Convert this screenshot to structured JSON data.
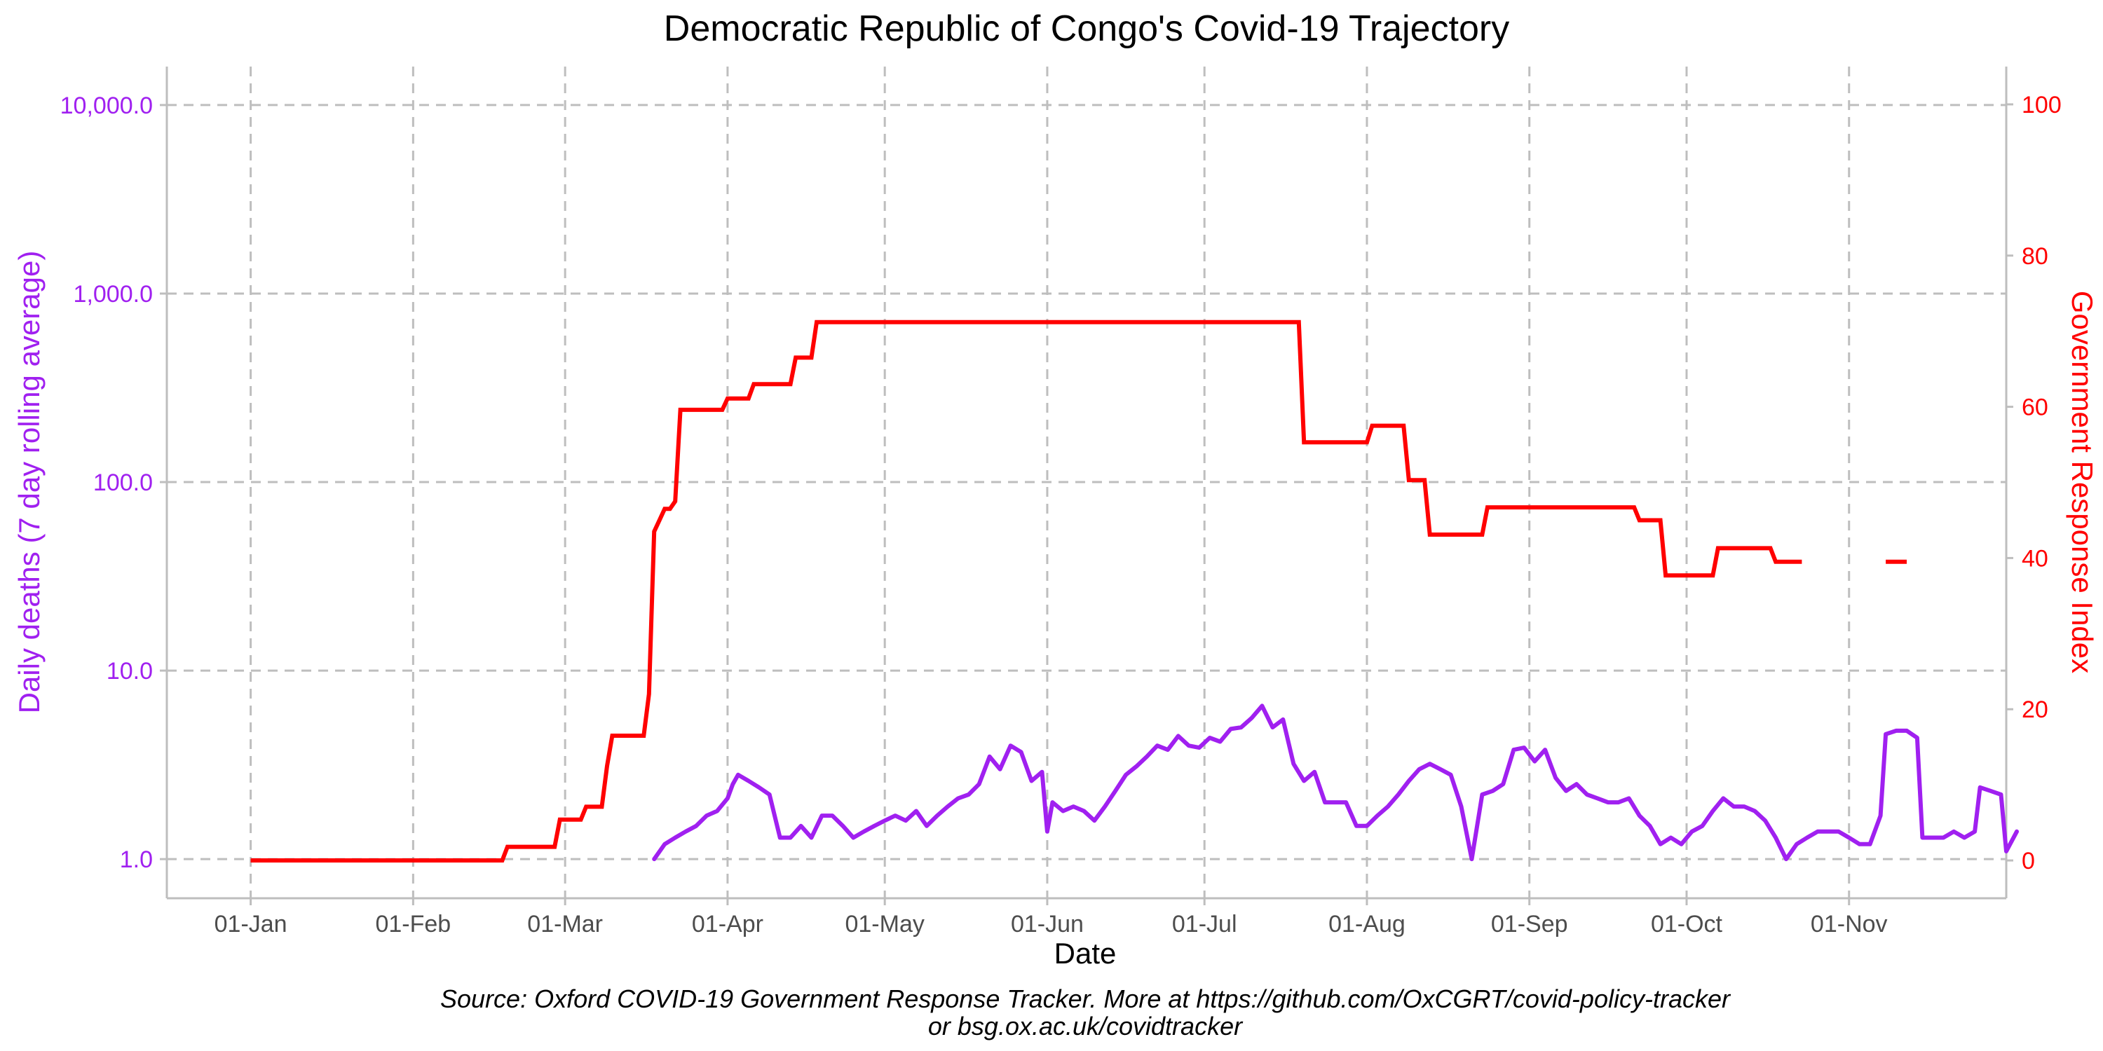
{
  "chart_data": {
    "type": "line",
    "title": "Democratic Republic of Congo's Covid-19 Trajectory",
    "xlabel": "Date",
    "ylabel_left": "Daily deaths (7 day rolling average)",
    "ylabel_right": "Government Response Index",
    "caption_line1": "Source: Oxford COVID-19 Government Response Tracker. More at https://github.com/OxCGRT/covid-policy-tracker",
    "caption_line2": "or bsg.ox.ac.uk/covidtracker",
    "x_ticks": [
      {
        "label": "01-Jan",
        "date": "2020-01-01"
      },
      {
        "label": "01-Feb",
        "date": "2020-02-01"
      },
      {
        "label": "01-Mar",
        "date": "2020-03-01"
      },
      {
        "label": "01-Apr",
        "date": "2020-04-01"
      },
      {
        "label": "01-May",
        "date": "2020-05-01"
      },
      {
        "label": "01-Jun",
        "date": "2020-06-01"
      },
      {
        "label": "01-Jul",
        "date": "2020-07-01"
      },
      {
        "label": "01-Aug",
        "date": "2020-08-01"
      },
      {
        "label": "01-Sep",
        "date": "2020-09-01"
      },
      {
        "label": "01-Oct",
        "date": "2020-10-01"
      },
      {
        "label": "01-Nov",
        "date": "2020-11-01"
      }
    ],
    "xlim": [
      "2019-12-16",
      "2020-12-01"
    ],
    "y_left": {
      "scale": "log10",
      "lim": [
        0.62,
        16000
      ],
      "ticks": [
        1,
        10,
        100,
        1000,
        10000
      ],
      "tick_labels": [
        "1.0",
        "10.0",
        "100.0",
        "1,000.0",
        "10,000.0"
      ]
    },
    "y_right": {
      "scale": "linear",
      "lim": [
        -5,
        105
      ],
      "ticks": [
        0,
        20,
        40,
        60,
        80,
        100
      ],
      "tick_labels": [
        "0",
        "20",
        "40",
        "60",
        "80",
        "100"
      ]
    },
    "grid": true,
    "colors": {
      "deaths": "#a020f0",
      "response": "#ff0000",
      "grid": "#bebebe",
      "axis": "#bebebe",
      "text": "#000000",
      "tick_text": "#4d4d4d"
    },
    "series": [
      {
        "name": "Daily deaths (7 day rolling average)",
        "axis": "left",
        "points": [
          [
            "2020-03-18",
            1.0
          ],
          [
            "2020-03-20",
            1.2
          ],
          [
            "2020-03-22",
            1.3
          ],
          [
            "2020-03-24",
            1.4
          ],
          [
            "2020-03-26",
            1.5
          ],
          [
            "2020-03-28",
            1.7
          ],
          [
            "2020-03-30",
            1.8
          ],
          [
            "2020-04-01",
            2.1
          ],
          [
            "2020-04-02",
            2.5
          ],
          [
            "2020-04-03",
            2.8
          ],
          [
            "2020-04-05",
            2.6
          ],
          [
            "2020-04-07",
            2.4
          ],
          [
            "2020-04-09",
            2.2
          ],
          [
            "2020-04-11",
            1.3
          ],
          [
            "2020-04-13",
            1.3
          ],
          [
            "2020-04-15",
            1.5
          ],
          [
            "2020-04-17",
            1.3
          ],
          [
            "2020-04-19",
            1.7
          ],
          [
            "2020-04-21",
            1.7
          ],
          [
            "2020-04-23",
            1.5
          ],
          [
            "2020-04-25",
            1.3
          ],
          [
            "2020-04-27",
            1.4
          ],
          [
            "2020-04-29",
            1.5
          ],
          [
            "2020-05-01",
            1.6
          ],
          [
            "2020-05-03",
            1.7
          ],
          [
            "2020-05-05",
            1.6
          ],
          [
            "2020-05-07",
            1.8
          ],
          [
            "2020-05-09",
            1.5
          ],
          [
            "2020-05-11",
            1.7
          ],
          [
            "2020-05-13",
            1.9
          ],
          [
            "2020-05-15",
            2.1
          ],
          [
            "2020-05-17",
            2.2
          ],
          [
            "2020-05-19",
            2.5
          ],
          [
            "2020-05-21",
            3.5
          ],
          [
            "2020-05-23",
            3.0
          ],
          [
            "2020-05-25",
            4.0
          ],
          [
            "2020-05-27",
            3.7
          ],
          [
            "2020-05-29",
            2.6
          ],
          [
            "2020-05-31",
            2.9
          ],
          [
            "2020-06-01",
            1.4
          ],
          [
            "2020-06-02",
            2.0
          ],
          [
            "2020-06-04",
            1.8
          ],
          [
            "2020-06-06",
            1.9
          ],
          [
            "2020-06-08",
            1.8
          ],
          [
            "2020-06-10",
            1.6
          ],
          [
            "2020-06-12",
            1.9
          ],
          [
            "2020-06-14",
            2.3
          ],
          [
            "2020-06-16",
            2.8
          ],
          [
            "2020-06-18",
            3.1
          ],
          [
            "2020-06-20",
            3.5
          ],
          [
            "2020-06-22",
            4.0
          ],
          [
            "2020-06-24",
            3.8
          ],
          [
            "2020-06-26",
            4.5
          ],
          [
            "2020-06-28",
            4.0
          ],
          [
            "2020-06-30",
            3.9
          ],
          [
            "2020-07-02",
            4.4
          ],
          [
            "2020-07-04",
            4.2
          ],
          [
            "2020-07-06",
            4.9
          ],
          [
            "2020-07-08",
            5.0
          ],
          [
            "2020-07-10",
            5.6
          ],
          [
            "2020-07-12",
            6.5
          ],
          [
            "2020-07-14",
            5.0
          ],
          [
            "2020-07-16",
            5.5
          ],
          [
            "2020-07-18",
            3.2
          ],
          [
            "2020-07-20",
            2.6
          ],
          [
            "2020-07-22",
            2.9
          ],
          [
            "2020-07-24",
            2.0
          ],
          [
            "2020-07-26",
            2.0
          ],
          [
            "2020-07-28",
            2.0
          ],
          [
            "2020-07-30",
            1.5
          ],
          [
            "2020-08-01",
            1.5
          ],
          [
            "2020-08-03",
            1.7
          ],
          [
            "2020-08-05",
            1.9
          ],
          [
            "2020-08-07",
            2.2
          ],
          [
            "2020-08-09",
            2.6
          ],
          [
            "2020-08-11",
            3.0
          ],
          [
            "2020-08-13",
            3.2
          ],
          [
            "2020-08-15",
            3.0
          ],
          [
            "2020-08-17",
            2.8
          ],
          [
            "2020-08-19",
            1.9
          ],
          [
            "2020-08-21",
            1.0
          ],
          [
            "2020-08-23",
            2.2
          ],
          [
            "2020-08-25",
            2.3
          ],
          [
            "2020-08-27",
            2.5
          ],
          [
            "2020-08-29",
            3.8
          ],
          [
            "2020-08-31",
            3.9
          ],
          [
            "2020-09-02",
            3.3
          ],
          [
            "2020-09-04",
            3.8
          ],
          [
            "2020-09-06",
            2.7
          ],
          [
            "2020-09-08",
            2.3
          ],
          [
            "2020-09-10",
            2.5
          ],
          [
            "2020-09-12",
            2.2
          ],
          [
            "2020-09-14",
            2.1
          ],
          [
            "2020-09-16",
            2.0
          ],
          [
            "2020-09-18",
            2.0
          ],
          [
            "2020-09-20",
            2.1
          ],
          [
            "2020-09-22",
            1.7
          ],
          [
            "2020-09-24",
            1.5
          ],
          [
            "2020-09-26",
            1.2
          ],
          [
            "2020-09-28",
            1.3
          ],
          [
            "2020-09-30",
            1.2
          ],
          [
            "2020-10-02",
            1.4
          ],
          [
            "2020-10-04",
            1.5
          ],
          [
            "2020-10-06",
            1.8
          ],
          [
            "2020-10-08",
            2.1
          ],
          [
            "2020-10-10",
            1.9
          ],
          [
            "2020-10-12",
            1.9
          ],
          [
            "2020-10-14",
            1.8
          ],
          [
            "2020-10-16",
            1.6
          ],
          [
            "2020-10-18",
            1.3
          ],
          [
            "2020-10-20",
            1.0
          ],
          [
            "2020-10-22",
            1.2
          ],
          [
            "2020-10-24",
            1.3
          ],
          [
            "2020-10-26",
            1.4
          ],
          [
            "2020-10-28",
            1.4
          ],
          [
            "2020-10-30",
            1.4
          ],
          [
            "2020-11-01",
            1.3
          ],
          [
            "2020-11-03",
            1.2
          ],
          [
            "2020-11-05",
            1.2
          ],
          [
            "2020-11-07",
            1.7
          ],
          [
            "2020-11-08",
            4.6
          ],
          [
            "2020-11-10",
            4.8
          ],
          [
            "2020-11-12",
            4.8
          ],
          [
            "2020-11-14",
            4.4
          ],
          [
            "2020-11-15",
            1.3
          ],
          [
            "2020-11-17",
            1.3
          ],
          [
            "2020-11-19",
            1.3
          ],
          [
            "2020-11-21",
            1.4
          ],
          [
            "2020-11-23",
            1.3
          ],
          [
            "2020-11-25",
            1.4
          ],
          [
            "2020-11-26",
            2.4
          ],
          [
            "2020-11-28",
            2.3
          ],
          [
            "2020-11-30",
            2.2
          ],
          [
            "2020-12-01",
            1.1
          ],
          [
            "2020-12-03",
            1.4
          ]
        ]
      },
      {
        "name": "Government Response Index",
        "axis": "right",
        "step": true,
        "segments": [
          [
            [
              "2020-01-01",
              0
            ],
            [
              "2020-02-18",
              0
            ],
            [
              "2020-02-19",
              1.8
            ],
            [
              "2020-02-28",
              1.8
            ],
            [
              "2020-02-29",
              5.4
            ],
            [
              "2020-03-04",
              5.4
            ],
            [
              "2020-03-05",
              7.1
            ],
            [
              "2020-03-08",
              7.1
            ],
            [
              "2020-03-09",
              12.5
            ],
            [
              "2020-03-10",
              16.5
            ],
            [
              "2020-03-16",
              16.5
            ],
            [
              "2020-03-17",
              22.0
            ],
            [
              "2020-03-18",
              43.5
            ],
            [
              "2020-03-19",
              45.0
            ],
            [
              "2020-03-20",
              46.5
            ],
            [
              "2020-03-21",
              46.5
            ],
            [
              "2020-03-22",
              47.5
            ],
            [
              "2020-03-23",
              59.6
            ],
            [
              "2020-03-31",
              59.6
            ],
            [
              "2020-04-01",
              61.1
            ],
            [
              "2020-04-05",
              61.1
            ],
            [
              "2020-04-06",
              63.0
            ],
            [
              "2020-04-13",
              63.0
            ],
            [
              "2020-04-14",
              66.5
            ],
            [
              "2020-04-17",
              66.5
            ],
            [
              "2020-04-18",
              71.2
            ],
            [
              "2020-07-19",
              71.2
            ],
            [
              "2020-07-20",
              55.3
            ],
            [
              "2020-08-01",
              55.3
            ],
            [
              "2020-08-02",
              57.5
            ],
            [
              "2020-08-08",
              57.5
            ],
            [
              "2020-08-09",
              50.3
            ],
            [
              "2020-08-12",
              50.3
            ],
            [
              "2020-08-13",
              43.1
            ],
            [
              "2020-08-23",
              43.1
            ],
            [
              "2020-08-24",
              46.7
            ],
            [
              "2020-09-21",
              46.7
            ],
            [
              "2020-09-22",
              45.0
            ],
            [
              "2020-09-26",
              45.0
            ],
            [
              "2020-09-27",
              37.7
            ],
            [
              "2020-10-06",
              37.7
            ],
            [
              "2020-10-07",
              41.3
            ],
            [
              "2020-10-17",
              41.3
            ],
            [
              "2020-10-18",
              39.5
            ],
            [
              "2020-10-23",
              39.5
            ]
          ],
          [
            [
              "2020-11-08",
              39.5
            ],
            [
              "2020-11-12",
              39.5
            ]
          ]
        ]
      }
    ]
  }
}
